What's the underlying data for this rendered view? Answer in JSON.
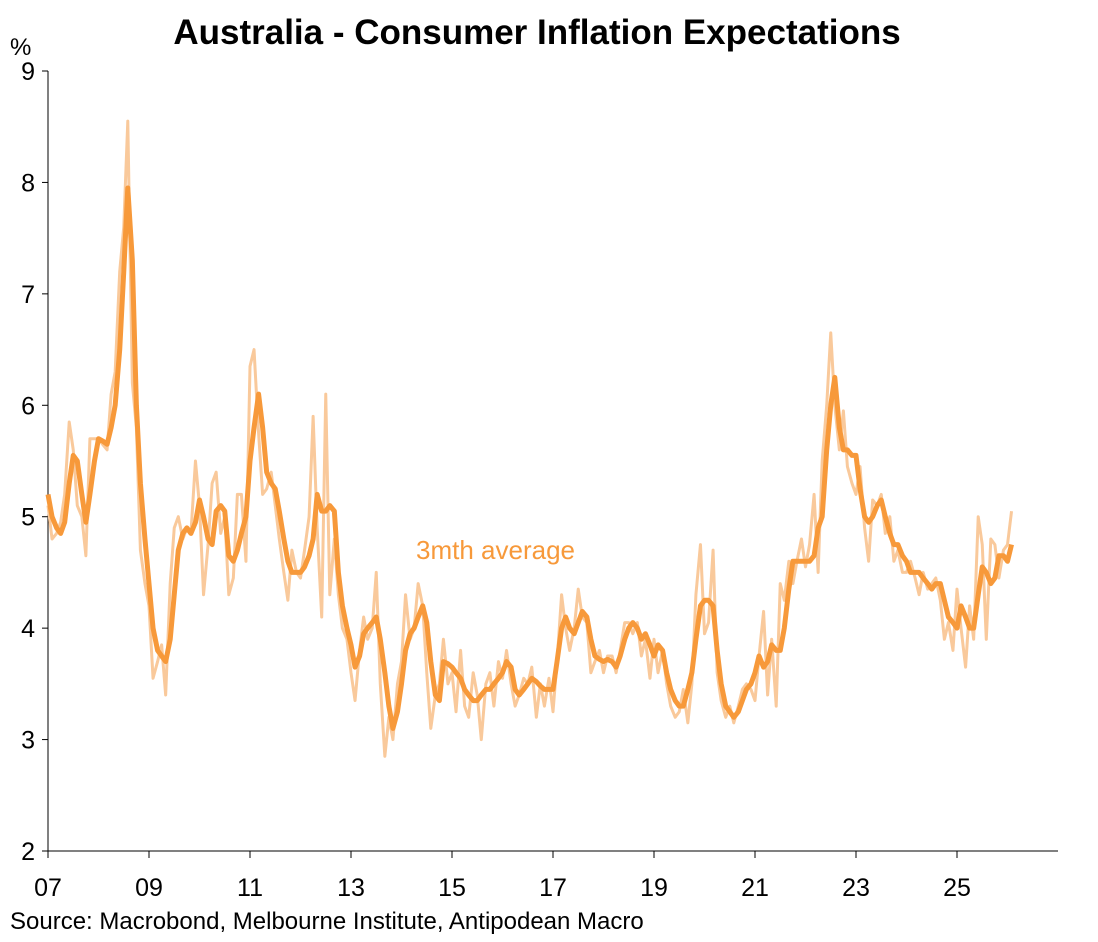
{
  "chart_data": {
    "type": "line",
    "title": "Australia - Consumer Inflation Expectations",
    "y_label": "%",
    "source": "Source: Macrobond, Melbourne Institute, Antipodean Macro",
    "xlim": [
      2007,
      2027
    ],
    "ylim": [
      2,
      9
    ],
    "yticks": [
      2,
      3,
      4,
      5,
      6,
      7,
      8,
      9
    ],
    "xticks": [
      {
        "value": 2007,
        "label": "07"
      },
      {
        "value": 2009,
        "label": "09"
      },
      {
        "value": 2011,
        "label": "11"
      },
      {
        "value": 2013,
        "label": "13"
      },
      {
        "value": 2015,
        "label": "15"
      },
      {
        "value": 2017,
        "label": "17"
      },
      {
        "value": 2019,
        "label": "19"
      },
      {
        "value": 2021,
        "label": "21"
      },
      {
        "value": 2023,
        "label": "23"
      },
      {
        "value": 2025,
        "label": "25"
      }
    ],
    "x": [
      2007,
      2007.08,
      2007.17,
      2007.25,
      2007.33,
      2007.42,
      2007.5,
      2007.58,
      2007.67,
      2007.75,
      2007.83,
      2007.92,
      2008,
      2008.08,
      2008.17,
      2008.25,
      2008.33,
      2008.42,
      2008.5,
      2008.58,
      2008.67,
      2008.75,
      2008.83,
      2008.92,
      2009,
      2009.08,
      2009.17,
      2009.25,
      2009.33,
      2009.42,
      2009.5,
      2009.58,
      2009.67,
      2009.75,
      2009.83,
      2009.92,
      2010,
      2010.08,
      2010.17,
      2010.25,
      2010.33,
      2010.42,
      2010.5,
      2010.58,
      2010.67,
      2010.75,
      2010.83,
      2010.92,
      2011,
      2011.08,
      2011.17,
      2011.25,
      2011.33,
      2011.42,
      2011.5,
      2011.58,
      2011.67,
      2011.75,
      2011.83,
      2011.92,
      2012,
      2012.08,
      2012.17,
      2012.25,
      2012.33,
      2012.42,
      2012.5,
      2012.58,
      2012.67,
      2012.75,
      2012.83,
      2012.92,
      2013,
      2013.08,
      2013.17,
      2013.25,
      2013.33,
      2013.42,
      2013.5,
      2013.58,
      2013.67,
      2013.75,
      2013.83,
      2013.92,
      2014,
      2014.08,
      2014.17,
      2014.25,
      2014.33,
      2014.42,
      2014.5,
      2014.58,
      2014.67,
      2014.75,
      2014.83,
      2014.92,
      2015,
      2015.08,
      2015.17,
      2015.25,
      2015.33,
      2015.42,
      2015.5,
      2015.58,
      2015.67,
      2015.75,
      2015.83,
      2015.92,
      2016,
      2016.08,
      2016.17,
      2016.25,
      2016.33,
      2016.42,
      2016.5,
      2016.58,
      2016.67,
      2016.75,
      2016.83,
      2016.92,
      2017,
      2017.08,
      2017.17,
      2017.25,
      2017.33,
      2017.42,
      2017.5,
      2017.58,
      2017.67,
      2017.75,
      2017.83,
      2017.92,
      2018,
      2018.08,
      2018.17,
      2018.25,
      2018.33,
      2018.42,
      2018.5,
      2018.58,
      2018.67,
      2018.75,
      2018.83,
      2018.92,
      2019,
      2019.08,
      2019.17,
      2019.25,
      2019.33,
      2019.42,
      2019.5,
      2019.58,
      2019.67,
      2019.75,
      2019.83,
      2019.92,
      2020,
      2020.08,
      2020.17,
      2020.25,
      2020.33,
      2020.42,
      2020.5,
      2020.58,
      2020.67,
      2020.75,
      2020.83,
      2020.92,
      2021,
      2021.08,
      2021.17,
      2021.25,
      2021.33,
      2021.42,
      2021.5,
      2021.58,
      2021.67,
      2021.75,
      2021.83,
      2021.92,
      2022,
      2022.08,
      2022.17,
      2022.25,
      2022.33,
      2022.42,
      2022.5,
      2022.58,
      2022.67,
      2022.75,
      2022.83,
      2022.92,
      2023,
      2023.08,
      2023.17,
      2023.25,
      2023.33,
      2023.42,
      2023.5,
      2023.58,
      2023.67,
      2023.75,
      2023.83,
      2023.92,
      2024,
      2024.08,
      2024.17,
      2024.25,
      2024.33,
      2024.42,
      2024.5,
      2024.58,
      2024.67,
      2024.75,
      2024.83,
      2024.92,
      2025,
      2025.08,
      2025.17,
      2025.25,
      2025.33,
      2025.42,
      2025.5,
      2025.58,
      2025.67,
      2025.75,
      2025.83,
      2025.92,
      2026,
      2026.08
    ],
    "series": [
      {
        "color": "#f9c99b",
        "width": 3,
        "values": [
          5.1,
          4.8,
          4.85,
          4.95,
          5.2,
          5.85,
          5.6,
          5.1,
          5.0,
          4.65,
          5.7,
          5.7,
          5.7,
          5.65,
          5.6,
          6.1,
          6.3,
          7.2,
          7.6,
          8.55,
          6.2,
          5.8,
          4.7,
          4.4,
          4.2,
          3.55,
          3.7,
          3.85,
          3.4,
          4.4,
          4.9,
          5.0,
          4.8,
          4.9,
          4.85,
          5.5,
          5.1,
          4.3,
          4.75,
          5.3,
          5.4,
          4.85,
          5.0,
          4.3,
          4.45,
          5.2,
          5.2,
          4.6,
          6.35,
          6.5,
          5.75,
          5.2,
          5.25,
          5.4,
          5.1,
          4.8,
          4.5,
          4.25,
          4.7,
          4.5,
          4.45,
          4.7,
          5.0,
          5.9,
          4.9,
          4.1,
          6.1,
          4.3,
          4.8,
          4.3,
          4.0,
          3.9,
          3.6,
          3.35,
          3.8,
          4.1,
          3.9,
          4.0,
          4.5,
          3.5,
          2.85,
          3.2,
          3.0,
          3.5,
          3.7,
          4.3,
          3.9,
          4.0,
          4.4,
          4.2,
          3.6,
          3.1,
          3.4,
          3.5,
          3.9,
          3.5,
          3.6,
          3.25,
          3.8,
          3.3,
          3.2,
          3.6,
          3.4,
          3.0,
          3.5,
          3.6,
          3.3,
          3.7,
          3.55,
          3.8,
          3.5,
          3.3,
          3.4,
          3.55,
          3.5,
          3.65,
          3.2,
          3.5,
          3.3,
          3.55,
          3.25,
          3.7,
          4.3,
          4.0,
          3.8,
          4.0,
          4.35,
          4.1,
          4.05,
          3.6,
          3.7,
          3.8,
          3.6,
          3.75,
          3.75,
          3.6,
          3.8,
          4.05,
          4.05,
          3.95,
          4.05,
          3.75,
          3.9,
          3.55,
          3.9,
          3.6,
          3.8,
          3.5,
          3.3,
          3.2,
          3.25,
          3.45,
          3.15,
          3.5,
          4.3,
          4.75,
          3.95,
          4.05,
          4.7,
          3.6,
          3.35,
          3.2,
          3.3,
          3.15,
          3.3,
          3.45,
          3.5,
          3.45,
          3.35,
          3.75,
          4.15,
          3.4,
          3.9,
          3.3,
          4.4,
          4.25,
          4.6,
          4.4,
          4.6,
          4.8,
          4.55,
          4.75,
          5.2,
          4.5,
          5.5,
          6.0,
          6.65,
          6.0,
          5.6,
          5.95,
          5.45,
          5.3,
          5.2,
          5.45,
          4.9,
          4.6,
          5.15,
          5.1,
          5.2,
          4.85,
          5.0,
          4.6,
          4.7,
          4.5,
          4.5,
          4.6,
          4.45,
          4.3,
          4.5,
          4.35,
          4.4,
          4.45,
          4.25,
          3.9,
          4.05,
          3.8,
          4.35,
          4.0,
          3.65,
          4.2,
          3.9,
          5.0,
          4.75,
          3.9,
          4.8,
          4.75,
          4.45,
          4.7,
          4.75,
          5.05
        ]
      },
      {
        "name": "3mth average",
        "color": "#f7993a",
        "width": 5,
        "values": [
          5.2,
          5.0,
          4.9,
          4.85,
          4.95,
          5.3,
          5.55,
          5.5,
          5.2,
          4.95,
          5.2,
          5.5,
          5.7,
          5.68,
          5.65,
          5.8,
          6.0,
          6.5,
          7.2,
          7.95,
          7.3,
          6.0,
          5.3,
          4.8,
          4.4,
          4.0,
          3.8,
          3.75,
          3.7,
          3.9,
          4.3,
          4.7,
          4.85,
          4.9,
          4.85,
          4.95,
          5.15,
          5.0,
          4.8,
          4.75,
          5.05,
          5.1,
          5.05,
          4.65,
          4.6,
          4.7,
          4.85,
          5.0,
          5.5,
          5.8,
          6.1,
          5.8,
          5.4,
          5.3,
          5.25,
          5.05,
          4.8,
          4.6,
          4.5,
          4.5,
          4.5,
          4.55,
          4.65,
          4.8,
          5.2,
          5.05,
          5.05,
          5.1,
          5.05,
          4.5,
          4.2,
          4.0,
          3.85,
          3.65,
          3.75,
          3.95,
          4.0,
          4.05,
          4.1,
          3.9,
          3.6,
          3.3,
          3.1,
          3.25,
          3.5,
          3.8,
          3.95,
          4.0,
          4.1,
          4.2,
          4.05,
          3.7,
          3.4,
          3.35,
          3.7,
          3.68,
          3.65,
          3.6,
          3.55,
          3.45,
          3.4,
          3.35,
          3.35,
          3.4,
          3.45,
          3.45,
          3.5,
          3.55,
          3.6,
          3.7,
          3.65,
          3.45,
          3.4,
          3.45,
          3.5,
          3.55,
          3.52,
          3.48,
          3.45,
          3.45,
          3.45,
          3.7,
          4.0,
          4.1,
          4.0,
          3.95,
          4.05,
          4.15,
          4.1,
          3.9,
          3.75,
          3.72,
          3.7,
          3.72,
          3.7,
          3.65,
          3.75,
          3.9,
          4.0,
          4.05,
          4.0,
          3.9,
          3.95,
          3.85,
          3.75,
          3.85,
          3.8,
          3.6,
          3.45,
          3.35,
          3.3,
          3.3,
          3.45,
          3.6,
          3.9,
          4.2,
          4.25,
          4.25,
          4.2,
          3.8,
          3.5,
          3.3,
          3.25,
          3.2,
          3.25,
          3.35,
          3.45,
          3.5,
          3.6,
          3.75,
          3.65,
          3.7,
          3.85,
          3.8,
          3.8,
          4.0,
          4.35,
          4.6,
          4.6,
          4.6,
          4.6,
          4.6,
          4.65,
          4.9,
          5.0,
          5.6,
          6.0,
          6.25,
          5.8,
          5.6,
          5.6,
          5.55,
          5.55,
          5.25,
          5.0,
          4.95,
          5.0,
          5.1,
          5.15,
          5.0,
          4.85,
          4.75,
          4.75,
          4.65,
          4.6,
          4.5,
          4.5,
          4.5,
          4.45,
          4.4,
          4.35,
          4.4,
          4.4,
          4.25,
          4.1,
          4.05,
          4.0,
          4.2,
          4.1,
          4.0,
          4.0,
          4.3,
          4.55,
          4.5,
          4.4,
          4.45,
          4.65,
          4.65,
          4.6,
          4.75
        ]
      }
    ]
  }
}
